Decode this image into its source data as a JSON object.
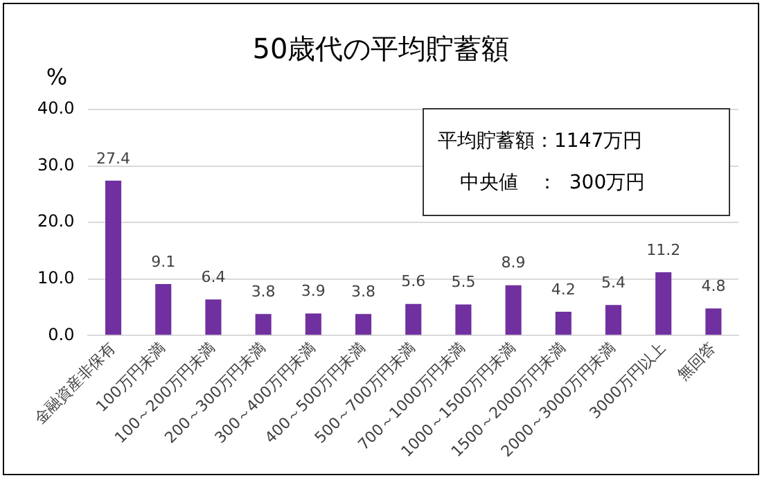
{
  "chart_data": {
    "type": "bar",
    "title": "50歳代の平均貯蓄額",
    "ylabel": "%",
    "categories": [
      "金融資産非保有",
      "100万円未満",
      "100～200万円未満",
      "200～300万円未満",
      "300～400万円未満",
      "400～500万円未満",
      "500～700万円未満",
      "700～1000万円未満",
      "1000～1500万円未満",
      "1500～2000万円未満",
      "2000～3000万円未満",
      "3000万円以上",
      "無回答"
    ],
    "values": [
      27.4,
      9.1,
      6.4,
      3.8,
      3.9,
      3.8,
      5.6,
      5.5,
      8.9,
      4.2,
      5.4,
      11.2,
      4.8
    ],
    "color": "#7030a0",
    "ylim": [
      0,
      40
    ],
    "yticks": [
      {
        "value": 0,
        "label": "0.0"
      },
      {
        "value": 10,
        "label": "10.0"
      },
      {
        "value": 20,
        "label": "20.0"
      },
      {
        "value": 30,
        "label": "30.0"
      },
      {
        "value": 40,
        "label": "40.0"
      }
    ],
    "grid": "y",
    "data_labels": true,
    "legend": false,
    "annotations": [
      "平均貯蓄額：1147万円",
      "中央値　：  300万円"
    ]
  }
}
